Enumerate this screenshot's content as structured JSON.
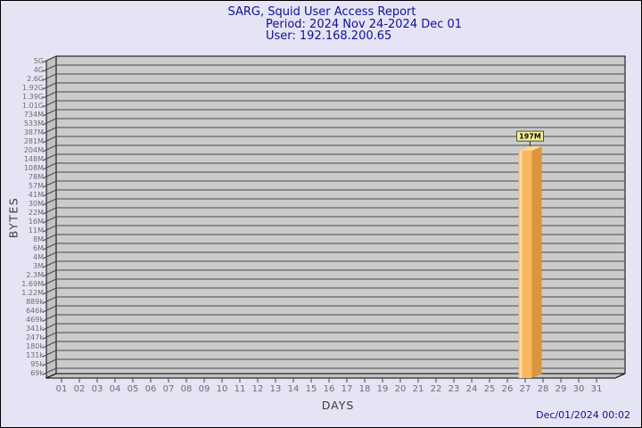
{
  "title": {
    "line1": "SARG, Squid User Access Report",
    "line2": "Period: 2024 Nov 24-2024 Dec 01",
    "line3": "User: 192.168.200.65"
  },
  "footer": {
    "timestamp": "Dec/01/2024 00:02"
  },
  "colors": {
    "background": "#E4E4F4",
    "plot_bg": "#CBCBCB",
    "wall": "#C2C2C2",
    "grid": "#4A4A4A",
    "frame": "#000000",
    "title_text": "#101099",
    "tick_label": "#6E6E6E",
    "axis_label": "#3C3C3C",
    "bar_front": "#FBB75C",
    "bar_side": "#D9953F",
    "bar_top": "#FDD494",
    "bar_highlight": "#FDD9A0",
    "annotation_bg": "#F0EE9B",
    "annotation_border": "#55551E",
    "annotation_text": "#111100"
  },
  "chart_data": {
    "type": "bar",
    "title": "SARG, Squid User Access Report",
    "subtitle_period": "Period: 2024 Nov 24-2024 Dec 01",
    "subtitle_user": "User: 192.168.200.65",
    "xlabel": "DAYS",
    "ylabel": "BYTES",
    "scale": "log",
    "grid": true,
    "legend": "none",
    "ylim_bytes": [
      69000,
      5000000000
    ],
    "y_ticks": [
      "5G",
      "4G",
      "2.6G",
      "1.92G",
      "1.39G",
      "1.01G",
      "734M",
      "533M",
      "387M",
      "281M",
      "204M",
      "148M",
      "108M",
      "78M",
      "57M",
      "41M",
      "30M",
      "22M",
      "16M",
      "11M",
      "8M",
      "6M",
      "4M",
      "3M",
      "2.3M",
      "1.69M",
      "1.22M",
      "889k",
      "646k",
      "469k",
      "341k",
      "247k",
      "180k",
      "131k",
      "95k",
      "69k"
    ],
    "x_ticks": [
      "01",
      "02",
      "03",
      "04",
      "05",
      "06",
      "07",
      "08",
      "09",
      "10",
      "11",
      "12",
      "13",
      "14",
      "15",
      "16",
      "17",
      "18",
      "19",
      "20",
      "21",
      "22",
      "23",
      "24",
      "25",
      "26",
      "27",
      "28",
      "29",
      "30",
      "31"
    ],
    "bars": [
      {
        "day": 27,
        "label": "197M",
        "bytes": 197000000
      }
    ]
  }
}
